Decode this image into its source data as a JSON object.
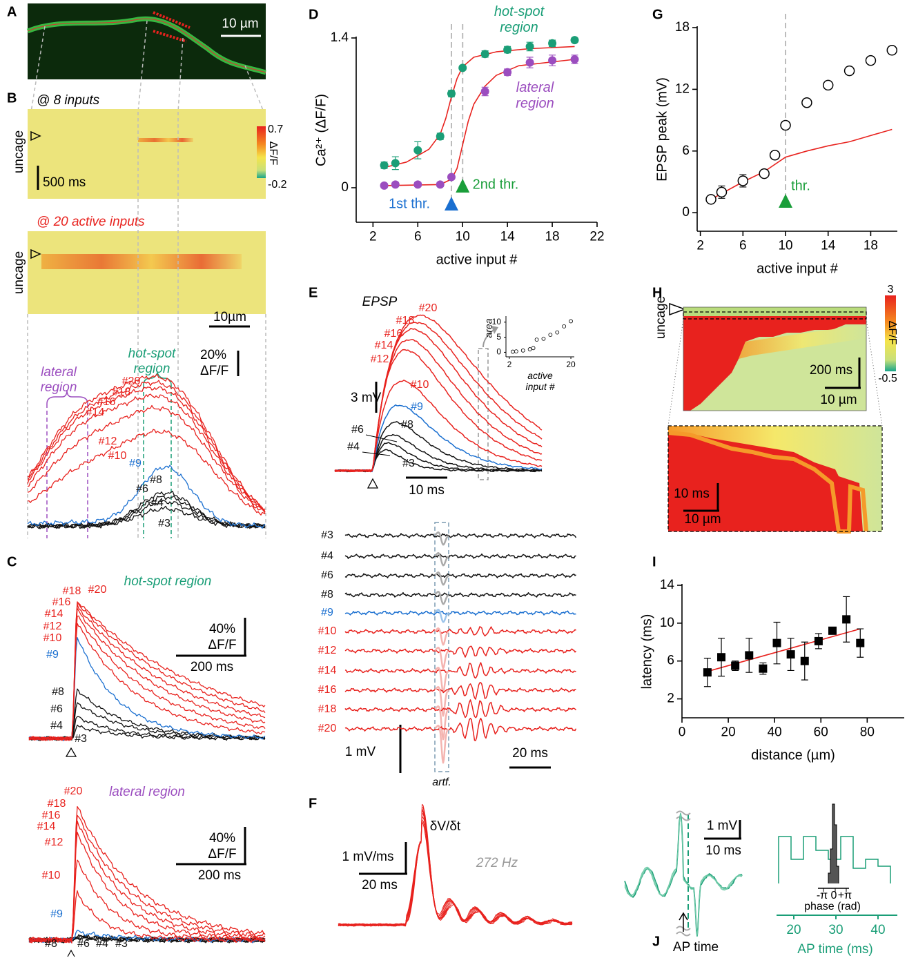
{
  "panels": {
    "A": {
      "letter": "A",
      "scale": "10 µm"
    },
    "B": {
      "letter": "B",
      "top_title": "@ 8 inputs",
      "uncage_top": "uncage",
      "time_scale": "500 ms",
      "colorbar": {
        "max": 0.7,
        "label": "ΔF/F",
        "min": -0.2
      },
      "mid_title": "@ 20 active inputs",
      "uncage_mid": "uncage",
      "space_scale": "10µm",
      "lateral": "lateral region",
      "hotspot": "hot-spot region",
      "amp_scale": "20%",
      "amp_unit": "ΔF/F",
      "traces": [
        "#20",
        "#18",
        "#16",
        "#14",
        "#12",
        "#10",
        "#9",
        "#8",
        "#6",
        "#4",
        "#3"
      ]
    },
    "C": {
      "letter": "C",
      "top": {
        "title": "hot-spot region",
        "traces": [
          "#18",
          "#20",
          "#16",
          "#14",
          "#12",
          "#10",
          "#9",
          "#8",
          "#6",
          "#4",
          "#3"
        ],
        "amp_scale": "40%",
        "amp_unit": "ΔF/F",
        "time_scale": "200 ms"
      },
      "bottom": {
        "title": "lateral region",
        "traces": [
          "#20",
          "#18",
          "#16",
          "#14",
          "#12",
          "#10",
          "#9",
          "#8",
          "#6",
          "#4",
          "#3"
        ],
        "amp_scale": "40%",
        "amp_unit": "ΔF/F",
        "time_scale": "200 ms"
      }
    },
    "D": {
      "letter": "D"
    },
    "E": {
      "letter": "E",
      "title": "EPSP",
      "traces": [
        "#20",
        "#18",
        "#16",
        "#14",
        "#12",
        "#10",
        "#9",
        "#8",
        "#6",
        "#4",
        "#3"
      ],
      "amp_scale": "3 mV",
      "time_scale": "10 ms",
      "rows": [
        "#3",
        "#4",
        "#6",
        "#8",
        "#9",
        "#10",
        "#12",
        "#14",
        "#16",
        "#18",
        "#20"
      ],
      "rows_amp": "1 mV",
      "rows_time": "20 ms",
      "artifact": "artf."
    },
    "F": {
      "letter": "F",
      "title": "δV/δt",
      "amp_scale": "1 mV/ms",
      "time_scale": "20 ms",
      "freq": "272 Hz"
    },
    "G": {
      "letter": "G"
    },
    "H": {
      "letter": "H",
      "uncage": "uncage",
      "cmax": 3,
      "clabel": "ΔF/F",
      "cmin": -0.5,
      "top_time": "200 ms",
      "top_space": "10 µm",
      "bottom_time": "10 ms",
      "bottom_space": "10 µm"
    },
    "I": {
      "letter": "I"
    },
    "J": {
      "letter": "J",
      "amp_scale": "1 mV",
      "time_scale": "10 ms",
      "ap_time": "AP time",
      "phase_label": "phase (rad)",
      "phase_ticks": [
        "-π",
        "0",
        "+π"
      ],
      "time_label": "AP time (ms)",
      "time_ticks": [
        "20",
        "30",
        "40"
      ]
    }
  },
  "chart_data": [
    {
      "type": "scatter",
      "x_label": "active input #",
      "y_label": "Ca²⁺ (ΔF/F)",
      "xlim": [
        0.5,
        22
      ],
      "ylim": [
        -0.3,
        1.4
      ],
      "xticks": [
        2,
        6,
        10,
        14,
        18,
        22
      ],
      "yticks": [
        0,
        1.4
      ],
      "marker": "circle",
      "series": [
        {
          "name": "hot-spot region",
          "color": "#1a9e77",
          "x": [
            3,
            4,
            6,
            8,
            9,
            10,
            12,
            14,
            16,
            18,
            20
          ],
          "values": [
            0.21,
            0.23,
            0.35,
            0.48,
            0.88,
            1.12,
            1.25,
            1.29,
            1.32,
            1.35,
            1.38
          ],
          "errors": [
            0.03,
            0.06,
            0.08,
            0.03,
            0.03,
            0.02,
            0.03,
            0.03,
            0.04,
            0.03,
            0.02
          ],
          "fit": {
            "color": "#e8221e",
            "x": [
              3,
              5,
              7,
              8,
              8.5,
              9,
              9.5,
              10,
              11,
              13,
              16,
              20
            ],
            "values": [
              0.19,
              0.24,
              0.36,
              0.5,
              0.65,
              0.85,
              1.02,
              1.13,
              1.22,
              1.27,
              1.3,
              1.32
            ]
          }
        },
        {
          "name": "lateral region",
          "color": "#9b4dbf",
          "x": [
            3,
            4,
            6,
            8,
            9,
            12,
            14,
            16,
            18,
            20
          ],
          "values": [
            0.02,
            0.03,
            0.03,
            0.03,
            0.1,
            0.9,
            1.08,
            1.17,
            1.19,
            1.2
          ],
          "errors": [
            0.02,
            0.02,
            0.02,
            0.02,
            0.02,
            0.04,
            0.03,
            0.05,
            0.05,
            0.04
          ],
          "fit": {
            "color": "#e8221e",
            "x": [
              3,
              8,
              9,
              9.5,
              10,
              10.5,
              11,
              12,
              13,
              15,
              20
            ],
            "values": [
              0.02,
              0.03,
              0.08,
              0.18,
              0.4,
              0.62,
              0.78,
              0.95,
              1.05,
              1.14,
              1.2
            ]
          }
        }
      ],
      "thresholds": [
        {
          "x": 9,
          "label": "1st thr.",
          "color": "#1a6fd0"
        },
        {
          "x": 10,
          "label": "2nd thr.",
          "color": "#1a9e3a"
        }
      ]
    },
    {
      "type": "scatter",
      "x_label": "active input #",
      "y_label": "EPSP peak (mV)",
      "xlim": [
        1.7,
        20.5
      ],
      "ylim": [
        -1.8,
        18
      ],
      "xticks": [
        2,
        6,
        10,
        14,
        18
      ],
      "yticks": [
        0,
        6,
        12,
        18
      ],
      "marker": "open-circle",
      "series": [
        {
          "color": "#000000",
          "x": [
            3,
            4,
            6,
            8,
            9,
            10,
            12,
            14,
            16,
            18,
            20
          ],
          "values": [
            1.3,
            2.0,
            3.1,
            3.8,
            5.6,
            8.5,
            10.7,
            12.4,
            13.8,
            14.8,
            15.8
          ],
          "errors": [
            0.2,
            0.6,
            0.6,
            0.3,
            0.3,
            0.3,
            0.2,
            0.2,
            0.3,
            0.3,
            0.3
          ],
          "fit": {
            "color": "#e8221e",
            "x": [
              3,
              6,
              8,
              10,
              12,
              14,
              16,
              18,
              20
            ],
            "values": [
              1.3,
              3.0,
              4.0,
              5.4,
              6.0,
              6.5,
              6.9,
              7.5,
              8.1
            ]
          }
        }
      ],
      "thresholds": [
        {
          "x": 10,
          "label": "thr.",
          "color": "#1a9e3a"
        }
      ]
    },
    {
      "type": "scatter",
      "x_label": "distance (µm)",
      "y_label": "latency (ms)",
      "xlim": [
        0,
        96
      ],
      "ylim": [
        0,
        14
      ],
      "xticks": [
        0,
        20,
        40,
        60,
        80
      ],
      "yticks": [
        2,
        6,
        10,
        14
      ],
      "marker": "square",
      "series": [
        {
          "color": "#000000",
          "x": [
            11,
            17,
            23,
            29,
            35,
            41,
            47,
            53,
            59,
            65,
            71,
            77
          ],
          "values": [
            4.8,
            6.4,
            5.5,
            6.6,
            5.2,
            7.9,
            6.7,
            6.0,
            8.1,
            9.2,
            10.4,
            7.9
          ],
          "errors": [
            1.5,
            2.0,
            0.5,
            1.8,
            0.6,
            2.2,
            1.7,
            2.0,
            0.8,
            0.3,
            2.4,
            1.5
          ],
          "fit": {
            "color": "#e8221e",
            "x": [
              11,
              77
            ],
            "values": [
              4.9,
              9.4
            ]
          }
        }
      ]
    },
    {
      "type": "scatter",
      "x_label": "active input #",
      "y_label": "area",
      "xlim": [
        1,
        21
      ],
      "ylim": [
        -1.5,
        12
      ],
      "xticks": [
        2,
        20
      ],
      "yticks": [
        0,
        5,
        10
      ],
      "marker": "open-circle",
      "series": [
        {
          "color": "#000000",
          "x": [
            3,
            4,
            6,
            8,
            9,
            10,
            12,
            14,
            16,
            18,
            20
          ],
          "values": [
            0.2,
            0.3,
            0.6,
            1.0,
            1.4,
            4.2,
            4.5,
            5.8,
            6.6,
            8.6,
            10.3
          ]
        }
      ]
    }
  ]
}
